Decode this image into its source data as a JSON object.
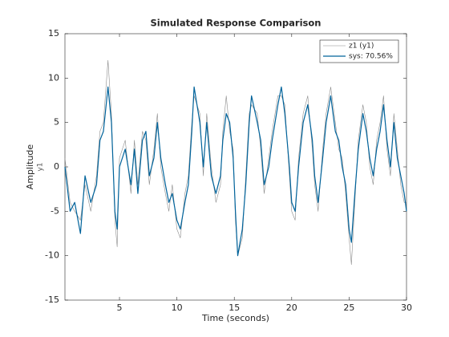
{
  "chart_data": {
    "type": "line",
    "title": "Simulated Response Comparison",
    "xlabel": "Time (seconds)",
    "ylabel": "Amplitude",
    "ylabel2": "y1",
    "x": [
      0.25,
      0.7,
      1.1,
      1.6,
      2.0,
      2.5,
      3.0,
      3.3,
      3.6,
      4.0,
      4.3,
      4.6,
      4.8,
      5.0,
      5.5,
      6.0,
      6.3,
      6.6,
      7.0,
      7.3,
      7.6,
      8.0,
      8.3,
      8.6,
      9.0,
      9.3,
      9.6,
      10.0,
      10.3,
      10.7,
      11.0,
      11.3,
      11.5,
      12.0,
      12.3,
      12.6,
      13.0,
      13.4,
      13.8,
      14.0,
      14.3,
      14.6,
      14.9,
      15.1,
      15.3,
      15.7,
      16.0,
      16.3,
      16.5,
      17.0,
      17.3,
      17.6,
      18.0,
      18.3,
      18.8,
      19.1,
      19.4,
      19.8,
      20.0,
      20.3,
      20.6,
      21.0,
      21.4,
      21.8,
      22.0,
      22.3,
      22.7,
      23.0,
      23.4,
      23.8,
      24.1,
      24.4,
      24.7,
      25.0,
      25.2,
      25.5,
      25.8,
      26.2,
      26.5,
      26.8,
      27.1,
      27.4,
      27.7,
      28.0,
      28.3,
      28.6,
      28.9,
      29.2,
      29.5,
      29.8,
      30.0
    ],
    "series": [
      {
        "name": "z1 (y1)",
        "color": "#8c8c8c",
        "width": 0.6,
        "values": [
          1,
          -4,
          -5,
          -6,
          -2,
          -5,
          -1,
          4,
          5,
          12,
          6,
          -6,
          -9,
          1,
          3,
          -3,
          3,
          -2,
          4,
          3,
          -2,
          2,
          6,
          0,
          -3,
          -5,
          -2,
          -7,
          -8,
          -3,
          -1,
          5,
          8,
          6,
          -1,
          6,
          0,
          -4,
          -2,
          4,
          8,
          4,
          2,
          -6,
          -10,
          -8,
          -1,
          6,
          7,
          6,
          2,
          -3,
          1,
          4,
          8,
          8,
          7,
          -1,
          -5,
          -6,
          1,
          6,
          8,
          2,
          -2,
          -5,
          2,
          6,
          9,
          5,
          2,
          1,
          -3,
          -8,
          -11,
          -4,
          3,
          7,
          5,
          0,
          -2,
          3,
          5,
          8,
          2,
          -1,
          6,
          2,
          -2,
          -4,
          -4
        ]
      },
      {
        "name": "sys: 70.56%",
        "color": "#00639b",
        "width": 1.2,
        "values": [
          0,
          -5,
          -4,
          -7.5,
          -1,
          -4,
          -2,
          3,
          4,
          9,
          5,
          -5,
          -7,
          0,
          2,
          -2,
          2,
          -3,
          3,
          4,
          -1,
          1,
          5,
          1,
          -2,
          -4,
          -3,
          -6,
          -7,
          -4,
          -2,
          4,
          9,
          5,
          0,
          5,
          -1,
          -3,
          -1,
          3,
          6,
          5,
          1,
          -5,
          -10,
          -7,
          -2,
          5,
          8,
          5,
          3,
          -2,
          0,
          3,
          7,
          9,
          6,
          0,
          -4,
          -5,
          0,
          5,
          7,
          3,
          -1,
          -4,
          1,
          5,
          8,
          4,
          3,
          0,
          -2,
          -7,
          -8.5,
          -3,
          2,
          6,
          4,
          1,
          -1,
          2,
          4,
          7,
          3,
          0,
          5,
          1,
          -1,
          -3,
          -5
        ]
      }
    ],
    "xlim": [
      0.25,
      30
    ],
    "xticks": [
      5,
      10,
      15,
      20,
      25,
      30
    ],
    "ylim": [
      -15,
      15
    ],
    "yticks": [
      -15,
      -10,
      -5,
      0,
      5,
      10,
      15
    ],
    "grid": false,
    "legend": "top-right"
  }
}
